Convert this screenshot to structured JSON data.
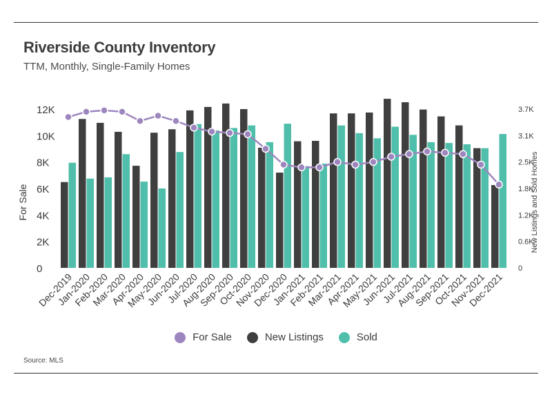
{
  "title": "Riverside County Inventory",
  "subtitle": "TTM, Monthly, Single-Family Homes",
  "source": "Source:  MLS",
  "colors": {
    "for_sale": "#9d86be",
    "new_listings": "#3f3f3f",
    "sold": "#4fbfab"
  },
  "chart_data": {
    "type": "bar",
    "categories": [
      "Dec-2019",
      "Jan-2020",
      "Feb-2020",
      "Mar-2020",
      "Apr-2020",
      "May-2020",
      "Jun-2020",
      "Jul-2020",
      "Aug-2020",
      "Sep-2020",
      "Oct-2020",
      "Nov-2020",
      "Dec-2020",
      "Jan-2021",
      "Feb-2021",
      "Mar-2021",
      "Apr-2021",
      "May-2021",
      "Jun-2021",
      "Jul-2021",
      "Aug-2021",
      "Sep-2021",
      "Oct-2021",
      "Nov-2021",
      "Dec-2021"
    ],
    "ylabel_left": "For Sale",
    "ylabel_right": "New Listings and Sold Homes",
    "left_ticks": [
      "0",
      "2K",
      "4K",
      "6K",
      "8K",
      "10K",
      "12K"
    ],
    "left_ylim": [
      0,
      12000
    ],
    "right_ticks": [
      "0",
      "0.6K",
      "1.2K",
      "1.8K",
      "2.5K",
      "3.1K",
      "3.7K"
    ],
    "right_ylim": [
      0,
      3700
    ],
    "legend": [
      "For Sale",
      "New Listings",
      "Sold"
    ],
    "series": [
      {
        "name": "For Sale",
        "type": "line",
        "axis": "left",
        "values": [
          11400,
          11800,
          11900,
          11800,
          11100,
          11500,
          11100,
          10600,
          10300,
          10200,
          10100,
          9000,
          7800,
          7600,
          7600,
          8000,
          7800,
          8000,
          8400,
          8600,
          8800,
          8700,
          8600,
          7800,
          6300
        ]
      },
      {
        "name": "New Listings",
        "type": "bar",
        "axis": "right",
        "values": [
          2000,
          3470,
          3380,
          3170,
          2380,
          3150,
          3230,
          3670,
          3750,
          3830,
          3700,
          2800,
          2220,
          2950,
          2960,
          3600,
          3600,
          3620,
          3940,
          3860,
          3690,
          3530,
          3320,
          2790,
          1930
        ]
      },
      {
        "name": "Sold",
        "type": "bar",
        "axis": "right",
        "values": [
          2450,
          2080,
          2110,
          2650,
          2010,
          1850,
          2700,
          3350,
          3200,
          3260,
          3320,
          2930,
          3360,
          2370,
          2430,
          3320,
          3140,
          3020,
          3290,
          3100,
          2930,
          2910,
          2880,
          2790,
          3120
        ]
      }
    ]
  }
}
